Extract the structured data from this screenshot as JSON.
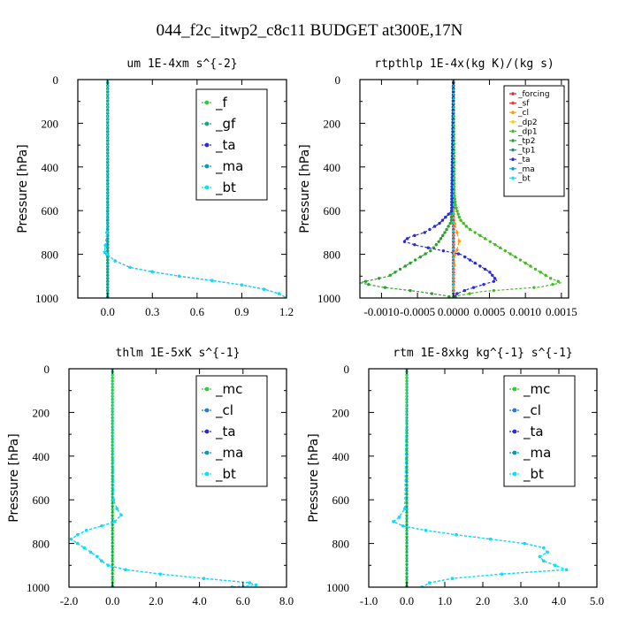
{
  "figure_title": "044_f2c_itwp2_c8c11  BUDGET at300E,17N",
  "colors": {
    "f": "#33cc33",
    "gf": "#1aa38a",
    "ta": "#2b2bd9",
    "ma": "#0099cc",
    "bt": "#00e5ff",
    "mc": "#33cc33",
    "cl": "#1f7fe0",
    "forcing": "#e0202a",
    "sf": "#ff2a2a",
    "cl_rt": "#ff9900",
    "dp2": "#ffcc00",
    "dp1": "#44bb22",
    "tp2": "#2ca02c",
    "tp1": "#1f8f6f"
  },
  "chart_data": [
    {
      "type": "line",
      "title": "um  1E-4xm s^{-2}",
      "ylabel": "Pressure [hPa]",
      "xlim": [
        -0.2,
        1.2
      ],
      "ylim": [
        1000,
        0
      ],
      "xticks": [
        "0.0",
        "0.3",
        "0.6",
        "0.9",
        "1.2"
      ],
      "xtick_values": [
        0.0,
        0.3,
        0.6,
        0.9,
        1.2
      ],
      "yticks": [
        "0",
        "200",
        "400",
        "600",
        "800",
        "1000"
      ],
      "legend_position": "top-right",
      "legend": [
        "_f",
        "_gf",
        "_ta",
        "_ma",
        "_bt"
      ],
      "series": [
        {
          "name": "_f",
          "color_key": "f",
          "p": [
            0,
            1000
          ],
          "x": [
            0,
            0
          ],
          "dense": true
        },
        {
          "name": "_gf",
          "color_key": "gf",
          "p": [
            0,
            1000
          ],
          "x": [
            0,
            0
          ],
          "dense": true
        },
        {
          "name": "_ta",
          "color_key": "ta",
          "p": [
            0,
            700,
            760,
            790,
            800,
            830,
            860,
            880,
            900,
            920,
            940,
            960,
            980,
            1000
          ],
          "x": [
            0,
            -0.005,
            -0.015,
            -0.02,
            -0.005,
            0.05,
            0.15,
            0.3,
            0.48,
            0.7,
            0.9,
            1.05,
            1.15,
            1.2
          ]
        },
        {
          "name": "_ma",
          "color_key": "ma",
          "p": [
            0,
            1000
          ],
          "x": [
            0,
            0
          ]
        },
        {
          "name": "_bt",
          "color_key": "bt",
          "p": [
            0,
            700,
            760,
            790,
            800,
            830,
            860,
            880,
            900,
            920,
            940,
            960,
            980,
            1000
          ],
          "x": [
            0,
            -0.005,
            -0.015,
            -0.02,
            -0.005,
            0.05,
            0.15,
            0.3,
            0.48,
            0.7,
            0.9,
            1.05,
            1.15,
            1.2
          ]
        }
      ]
    },
    {
      "type": "line",
      "title": "rtpthlp  1E-4x(kg K)/(kg s)",
      "ylabel": "Pressure [hPa]",
      "xlim": [
        -0.0013,
        0.0016
      ],
      "ylim": [
        1000,
        0
      ],
      "xticks": [
        "-0.0010",
        "-0.0005",
        "0.0000",
        "0.0005",
        "0.0010",
        "0.0015"
      ],
      "xtick_values": [
        -0.001,
        -0.0005,
        0.0,
        0.0005,
        0.001,
        0.0015
      ],
      "yticks": [
        "0",
        "200",
        "400",
        "600",
        "800",
        "1000"
      ],
      "legend_position": "top-right",
      "legend": [
        "_forcing",
        "_sf",
        "_cl",
        "_dp2",
        "_dp1",
        "_tp2",
        "_tp1",
        "_ta",
        "_ma",
        "_bt"
      ],
      "series": [
        {
          "name": "_forcing",
          "color_key": "forcing",
          "p": [
            0,
            1000
          ],
          "x": [
            0,
            0
          ],
          "dense": true
        },
        {
          "name": "_sf",
          "color_key": "sf",
          "p": [
            0,
            1000
          ],
          "x": [
            0,
            0
          ],
          "dense": true
        },
        {
          "name": "_cl",
          "color_key": "cl_rt",
          "p": [
            0,
            600,
            660,
            700,
            740,
            780,
            800,
            850,
            900,
            950,
            1000
          ],
          "x": [
            0,
            0,
            2e-05,
            5e-05,
            8e-05,
            5e-05,
            2e-05,
            1e-05,
            0,
            0,
            0
          ]
        },
        {
          "name": "_dp2",
          "color_key": "dp2",
          "p": [
            0,
            1000
          ],
          "x": [
            0,
            0
          ]
        },
        {
          "name": "_dp1",
          "color_key": "dp1",
          "p": [
            0,
            520,
            580,
            640,
            680,
            720,
            760,
            800,
            840,
            880,
            910,
            930,
            950,
            970,
            990,
            1000
          ],
          "x": [
            0,
            1e-05,
            3e-05,
            9e-05,
            0.0002,
            0.0004,
            0.0006,
            0.0008,
            0.001,
            0.0012,
            0.00135,
            0.0015,
            0.0012,
            0.0004,
            5e-05,
            0
          ],
          "dense": true
        },
        {
          "name": "_tp2",
          "color_key": "tp2",
          "p": [
            0,
            650,
            700,
            740,
            780,
            820,
            860,
            900,
            930,
            950,
            970,
            990,
            1000
          ],
          "x": [
            0,
            -3e-05,
            -0.00012,
            -0.0002,
            -0.0003,
            -0.0005,
            -0.0007,
            -0.0009,
            -0.0013,
            -0.001,
            -0.0005,
            -0.0001,
            0
          ],
          "dense": true
        },
        {
          "name": "_tp1",
          "color_key": "tp1",
          "p": [
            0,
            1000
          ],
          "x": [
            0,
            0
          ]
        },
        {
          "name": "_ta",
          "color_key": "ta",
          "p": [
            0,
            600,
            660,
            700,
            720,
            740,
            760,
            800,
            840,
            880,
            920,
            940,
            960,
            980,
            1000
          ],
          "x": [
            0,
            -2e-05,
            -0.0002,
            -0.0004,
            -0.0006,
            -0.0007,
            -0.0005,
            0.0001,
            0.0003,
            0.0005,
            0.0006,
            0.0004,
            0.0002,
            5e-05,
            0
          ],
          "dense": true
        },
        {
          "name": "_ma",
          "color_key": "ma",
          "p": [
            0,
            1000
          ],
          "x": [
            0,
            0
          ]
        },
        {
          "name": "_bt",
          "color_key": "bt",
          "p": [
            0,
            1000
          ],
          "x": [
            0,
            0
          ]
        }
      ]
    },
    {
      "type": "line",
      "title": "thlm  1E-5xK s^{-1}",
      "ylabel": "Pressure [hPa]",
      "xlim": [
        -2.0,
        8.0
      ],
      "ylim": [
        1000,
        0
      ],
      "xticks": [
        "-2.0",
        "0.0",
        "2.0",
        "4.0",
        "6.0",
        "8.0"
      ],
      "xtick_values": [
        -2.0,
        0.0,
        2.0,
        4.0,
        6.0,
        8.0
      ],
      "yticks": [
        "0",
        "200",
        "400",
        "600",
        "800",
        "1000"
      ],
      "legend_position": "top-right",
      "legend": [
        "_mc",
        "_cl",
        "_ta",
        "_ma",
        "_bt"
      ],
      "series": [
        {
          "name": "_mc",
          "color_key": "mc",
          "p": [
            0,
            1000
          ],
          "x": [
            0,
            0
          ],
          "dense": true
        },
        {
          "name": "_cl",
          "color_key": "cl",
          "p": [
            0,
            600,
            640,
            670,
            700,
            720,
            740,
            760,
            780,
            800,
            820,
            840,
            860,
            880,
            900,
            920,
            940,
            960,
            980,
            990,
            1000
          ],
          "x": [
            0,
            0.05,
            0.2,
            0.4,
            0.1,
            -0.5,
            -1.2,
            -1.6,
            -1.9,
            -1.6,
            -1.3,
            -1.0,
            -0.7,
            -0.5,
            -0.2,
            0.6,
            2.2,
            4.2,
            6.3,
            6.6,
            5.5
          ]
        },
        {
          "name": "_ta",
          "color_key": "ta",
          "p": [
            0,
            1000
          ],
          "x": [
            0,
            0
          ]
        },
        {
          "name": "_ma",
          "color_key": "ma",
          "p": [
            0,
            1000
          ],
          "x": [
            0,
            0
          ]
        },
        {
          "name": "_bt",
          "color_key": "bt",
          "p": [
            0,
            600,
            640,
            670,
            700,
            720,
            740,
            760,
            780,
            800,
            820,
            840,
            860,
            880,
            900,
            920,
            940,
            960,
            980,
            990,
            1000
          ],
          "x": [
            0,
            0.05,
            0.2,
            0.4,
            0.1,
            -0.5,
            -1.2,
            -1.6,
            -1.9,
            -1.6,
            -1.3,
            -1.0,
            -0.7,
            -0.5,
            -0.2,
            0.6,
            2.2,
            4.2,
            6.3,
            6.6,
            5.5
          ]
        }
      ]
    },
    {
      "type": "line",
      "title": "rtm  1E-8xkg kg^{-1} s^{-1}",
      "ylabel": "Pressure [hPa]",
      "xlim": [
        -1.0,
        5.0
      ],
      "ylim": [
        1000,
        0
      ],
      "xticks": [
        "-1.0",
        "0.0",
        "1.0",
        "2.0",
        "3.0",
        "4.0",
        "5.0"
      ],
      "xtick_values": [
        -1.0,
        0.0,
        1.0,
        2.0,
        3.0,
        4.0,
        5.0
      ],
      "yticks": [
        "0",
        "200",
        "400",
        "600",
        "800",
        "1000"
      ],
      "legend_position": "top-right",
      "legend": [
        "_mc",
        "_cl",
        "_ta",
        "_ma",
        "_bt"
      ],
      "series": [
        {
          "name": "_mc",
          "color_key": "mc",
          "p": [
            0,
            1000
          ],
          "x": [
            0,
            0
          ],
          "dense": true
        },
        {
          "name": "_cl",
          "color_key": "cl",
          "p": [
            0,
            640,
            680,
            700,
            720,
            740,
            760,
            780,
            800,
            820,
            840,
            860,
            880,
            900,
            920,
            940,
            960,
            980,
            1000
          ],
          "x": [
            0,
            -0.05,
            -0.2,
            -0.35,
            -0.1,
            0.5,
            1.3,
            2.2,
            3.1,
            3.6,
            3.7,
            3.5,
            3.6,
            3.9,
            4.2,
            2.5,
            1.2,
            0.6,
            0.4
          ]
        },
        {
          "name": "_ta",
          "color_key": "ta",
          "p": [
            0,
            1000
          ],
          "x": [
            0,
            0
          ]
        },
        {
          "name": "_ma",
          "color_key": "ma",
          "p": [
            0,
            1000
          ],
          "x": [
            0,
            0
          ]
        },
        {
          "name": "_bt",
          "color_key": "bt",
          "p": [
            0,
            640,
            680,
            700,
            720,
            740,
            760,
            780,
            800,
            820,
            840,
            860,
            880,
            900,
            920,
            940,
            960,
            980,
            1000
          ],
          "x": [
            0,
            -0.05,
            -0.2,
            -0.35,
            -0.1,
            0.5,
            1.3,
            2.2,
            3.1,
            3.6,
            3.7,
            3.5,
            3.6,
            3.9,
            4.2,
            2.5,
            1.2,
            0.6,
            0.4
          ]
        }
      ]
    }
  ]
}
